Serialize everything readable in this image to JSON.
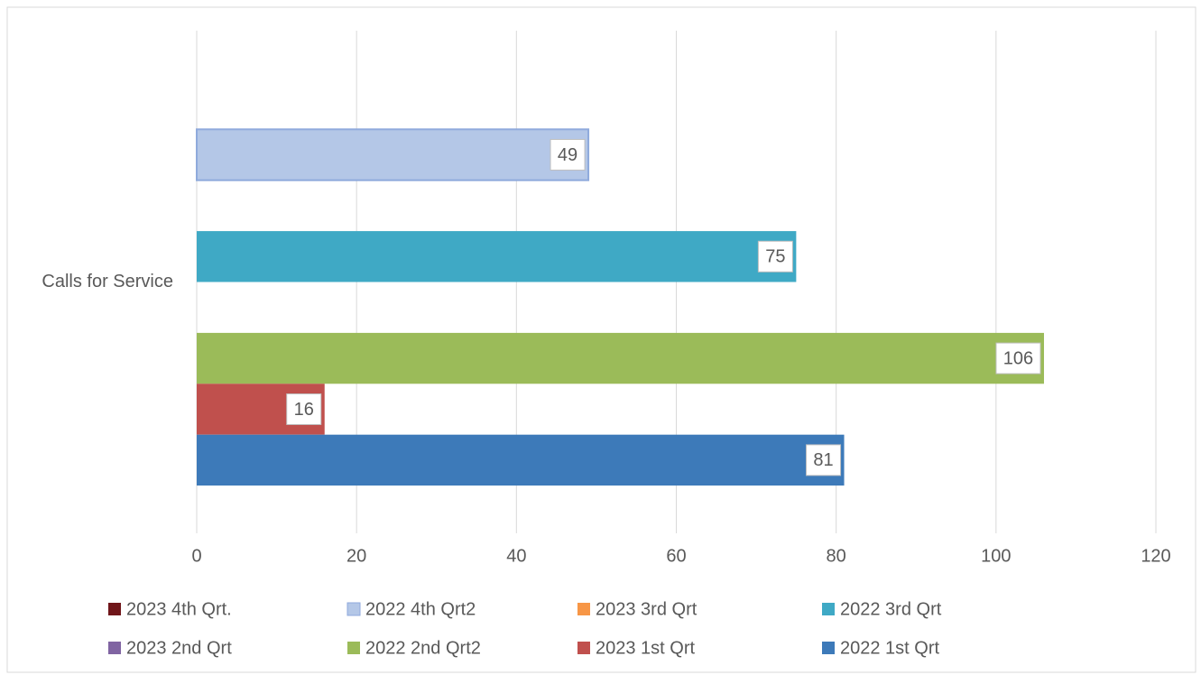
{
  "chart_data": {
    "type": "hbar",
    "categories": [
      "Calls for Service"
    ],
    "series": [
      {
        "name": "2023 4th Qrt.",
        "color": "#70161a",
        "values": [
          null
        ]
      },
      {
        "name": "2022 4th Qrt2",
        "color": "#b4c7e7",
        "values": [
          49
        ]
      },
      {
        "name": "2023 3rd Qrt",
        "color": "#f79646",
        "values": [
          null
        ]
      },
      {
        "name": "2022 3rd Qrt",
        "color": "#3fa9c5",
        "values": [
          75
        ]
      },
      {
        "name": "2023 2nd Qrt",
        "color": "#8064a2",
        "values": [
          null
        ]
      },
      {
        "name": "2022 2nd Qrt2",
        "color": "#9bbb59",
        "values": [
          106
        ]
      },
      {
        "name": "2023 1st Qrt",
        "color": "#c0504d",
        "values": [
          16
        ]
      },
      {
        "name": "2022 1st Qrt",
        "color": "#3d7ab9",
        "values": [
          81
        ]
      }
    ],
    "xlim": [
      0,
      120
    ],
    "xticks": [
      0,
      20,
      40,
      60,
      80,
      100,
      120
    ],
    "grid": true,
    "legend": "bottom"
  }
}
